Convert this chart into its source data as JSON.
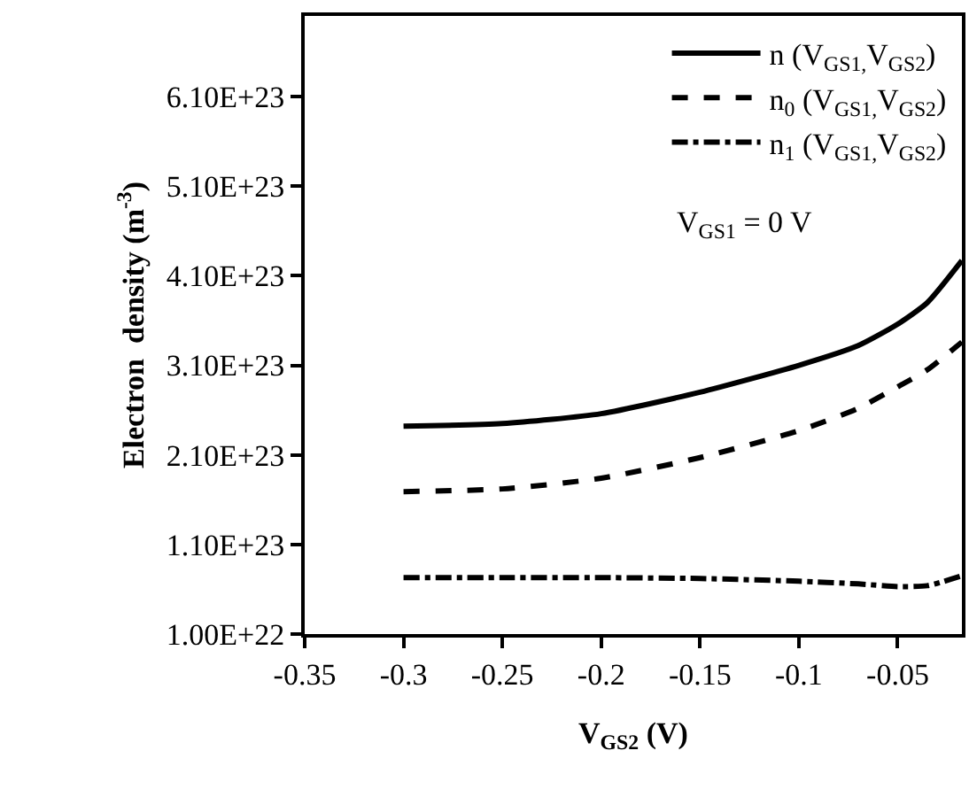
{
  "chart_data": {
    "type": "line",
    "xlabel": "V$_{GS2}$ (V)",
    "ylabel": "Electron  density (m$^{-3}$)",
    "annotations": [
      "V$_{GS1}$ = 0 V"
    ],
    "x": [
      -0.3,
      -0.25,
      -0.2,
      -0.15,
      -0.1,
      -0.07,
      -0.05,
      -0.035,
      -0.0175
    ],
    "series": [
      {
        "name": "n (V$_{GS1,}$V$_{GS2}$)",
        "color": "#000000",
        "line_style": "solid",
        "values": [
          2.42e+23,
          2.45e+23,
          2.56e+23,
          2.8e+23,
          3.1e+23,
          3.32e+23,
          3.56e+23,
          3.8e+23,
          4.27e+23
        ]
      },
      {
        "name": "n$_{0}$ (V$_{GS1,}$V$_{GS2}$)",
        "color": "#000000",
        "line_style": "dashed",
        "values": [
          1.69e+23,
          1.72e+23,
          1.84e+23,
          2.07e+23,
          2.37e+23,
          2.62e+23,
          2.86e+23,
          3.05e+23,
          3.36e+23
        ]
      },
      {
        "name": "n$_{1}$ (V$_{GS1,}$V$_{GS2}$)",
        "color": "#000000",
        "line_style": "dashdot",
        "values": [
          7.3e+22,
          7.3e+22,
          7.3e+22,
          7.2e+22,
          6.9e+22,
          6.6e+22,
          6.3e+22,
          6.4e+22,
          7.5e+22
        ]
      }
    ],
    "xlim": [
      -0.35,
      -0.0175
    ],
    "xticks": [
      -0.35,
      -0.3,
      -0.25,
      -0.2,
      -0.15,
      -0.1,
      -0.05
    ],
    "ylim": [
      1e+22,
      7e+23
    ],
    "yticks": [
      {
        "value": 1e+22,
        "label": "1.00E+22"
      },
      {
        "value": 1.1e+23,
        "label": "1.10E+23"
      },
      {
        "value": 2.1e+23,
        "label": "2.10E+23"
      },
      {
        "value": 3.1e+23,
        "label": "3.10E+23"
      },
      {
        "value": 4.1e+23,
        "label": "4.10E+23"
      },
      {
        "value": 5.1e+23,
        "label": "5.10E+23"
      },
      {
        "value": 6.1e+23,
        "label": "6.10E+23"
      }
    ],
    "grid": false,
    "legend": "top right",
    "marker": "none"
  }
}
